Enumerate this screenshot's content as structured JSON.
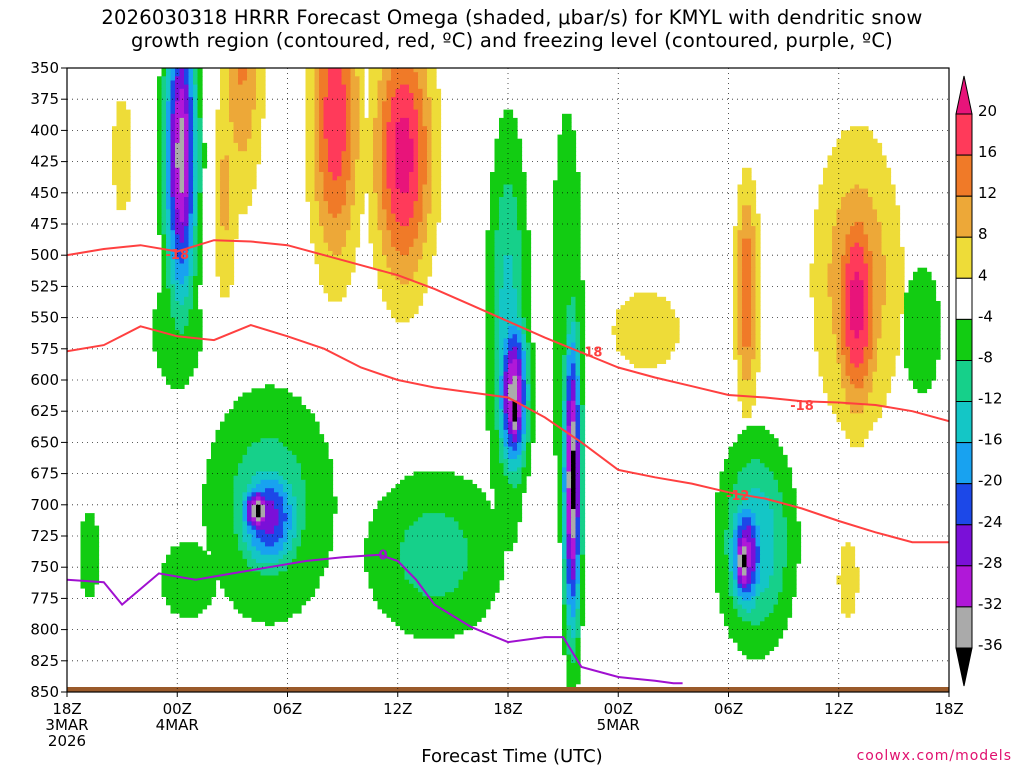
{
  "header": {
    "title_line1": "2026030318 HRRR Forecast Omega (shaded, μbar/s) for KMYL with dendritic snow",
    "title_line2": "growth region (contoured, red, ºC) and freezing level (contoured, purple, ºC)"
  },
  "footer": {
    "credit": "coolwx.com/models"
  },
  "chart_data": {
    "type": "heatmap",
    "xlabel": "Forecast Time (UTC)",
    "ylabel": "",
    "y_ticks": [
      350,
      375,
      400,
      425,
      450,
      475,
      500,
      525,
      550,
      575,
      600,
      625,
      650,
      675,
      700,
      725,
      750,
      775,
      800,
      825,
      850
    ],
    "ylim": [
      350,
      850
    ],
    "y_inverted": true,
    "xlim": [
      0,
      48
    ],
    "x_ticks": [
      {
        "hour": 0,
        "lines": [
          "18Z",
          "3MAR",
          "2026"
        ]
      },
      {
        "hour": 6,
        "lines": [
          "00Z",
          "4MAR"
        ]
      },
      {
        "hour": 12,
        "lines": [
          "06Z"
        ]
      },
      {
        "hour": 18,
        "lines": [
          "12Z"
        ]
      },
      {
        "hour": 24,
        "lines": [
          "18Z"
        ]
      },
      {
        "hour": 30,
        "lines": [
          "00Z",
          "5MAR"
        ]
      },
      {
        "hour": 36,
        "lines": [
          "06Z"
        ]
      },
      {
        "hour": 42,
        "lines": [
          "12Z"
        ]
      },
      {
        "hour": 48,
        "lines": [
          "18Z"
        ]
      }
    ],
    "grid": true,
    "colorbar": {
      "labels": [
        20,
        16,
        12,
        8,
        4,
        -4,
        -8,
        -12,
        -16,
        -20,
        -24,
        -28,
        -32,
        -36
      ],
      "bins": [
        {
          "min": 20,
          "max": 24,
          "color": "#e8147a"
        },
        {
          "min": 16,
          "max": 20,
          "color": "#ff3a5a"
        },
        {
          "min": 12,
          "max": 16,
          "color": "#f07a28"
        },
        {
          "min": 8,
          "max": 12,
          "color": "#eda838"
        },
        {
          "min": 4,
          "max": 8,
          "color": "#eedc38"
        },
        {
          "min": -4,
          "max": 4,
          "color": "#ffffff"
        },
        {
          "min": -8,
          "max": -4,
          "color": "#12cc12"
        },
        {
          "min": -12,
          "max": -8,
          "color": "#16d08a"
        },
        {
          "min": -16,
          "max": -12,
          "color": "#14c6c6"
        },
        {
          "min": -20,
          "max": -16,
          "color": "#18a2f0"
        },
        {
          "min": -24,
          "max": -20,
          "color": "#1c48e8"
        },
        {
          "min": -28,
          "max": -24,
          "color": "#7a10d8"
        },
        {
          "min": -32,
          "max": -28,
          "color": "#b018d8"
        },
        {
          "min": -36,
          "max": -32,
          "color": "#aaaaaa"
        },
        {
          "min": -40,
          "max": -36,
          "color": "#000000"
        }
      ]
    },
    "omega_field": {
      "units": "μbar/s",
      "features": [
        {
          "t_center": 6.2,
          "p_center": 420,
          "t_halfwidth": 1.1,
          "p_halfwidth": 150,
          "value": -34
        },
        {
          "t_center": 6.0,
          "p_center": 560,
          "t_halfwidth": 2.0,
          "p_halfwidth": 70,
          "value": -8
        },
        {
          "t_center": 9.5,
          "p_center": 330,
          "t_halfwidth": 1.5,
          "p_halfwidth": 160,
          "value": 13
        },
        {
          "t_center": 8.6,
          "p_center": 450,
          "t_halfwidth": 0.9,
          "p_halfwidth": 120,
          "value": 9
        },
        {
          "t_center": 14.6,
          "p_center": 390,
          "t_halfwidth": 1.7,
          "p_halfwidth": 150,
          "value": 19
        },
        {
          "t_center": 18.3,
          "p_center": 420,
          "t_halfwidth": 2.0,
          "p_halfwidth": 130,
          "value": 22
        },
        {
          "t_center": 3.0,
          "p_center": 420,
          "t_halfwidth": 1.0,
          "p_halfwidth": 90,
          "value": 6
        },
        {
          "t_center": 11.0,
          "p_center": 700,
          "t_halfwidth": 4.5,
          "p_halfwidth": 120,
          "value": -11
        },
        {
          "t_center": 11.0,
          "p_center": 710,
          "t_halfwidth": 2.2,
          "p_halfwidth": 55,
          "value": -26
        },
        {
          "t_center": 10.4,
          "p_center": 705,
          "t_halfwidth": 1.1,
          "p_halfwidth": 25,
          "value": -38
        },
        {
          "t_center": 6.6,
          "p_center": 760,
          "t_halfwidth": 3.0,
          "p_halfwidth": 60,
          "value": -6
        },
        {
          "t_center": 20.0,
          "p_center": 740,
          "t_halfwidth": 5.0,
          "p_halfwidth": 90,
          "value": -10
        },
        {
          "t_center": 24.0,
          "p_center": 560,
          "t_halfwidth": 1.4,
          "p_halfwidth": 200,
          "value": -14
        },
        {
          "t_center": 24.3,
          "p_center": 610,
          "t_halfwidth": 1.0,
          "p_halfwidth": 80,
          "value": -34
        },
        {
          "t_center": 24.4,
          "p_center": 625,
          "t_halfwidth": 0.5,
          "p_halfwidth": 45,
          "value": -38
        },
        {
          "t_center": 27.5,
          "p_center": 680,
          "t_halfwidth": 0.6,
          "p_halfwidth": 150,
          "value": -38
        },
        {
          "t_center": 27.2,
          "p_center": 550,
          "t_halfwidth": 1.3,
          "p_halfwidth": 250,
          "value": -8
        },
        {
          "t_center": 31.5,
          "p_center": 560,
          "t_halfwidth": 3.5,
          "p_halfwidth": 60,
          "value": 6
        },
        {
          "t_center": 37.0,
          "p_center": 530,
          "t_halfwidth": 0.8,
          "p_halfwidth": 110,
          "value": 16
        },
        {
          "t_center": 43.0,
          "p_center": 520,
          "t_halfwidth": 3.0,
          "p_halfwidth": 150,
          "value": 12
        },
        {
          "t_center": 43.0,
          "p_center": 540,
          "t_halfwidth": 1.5,
          "p_halfwidth": 110,
          "value": 22
        },
        {
          "t_center": 37.5,
          "p_center": 730,
          "t_halfwidth": 2.5,
          "p_halfwidth": 100,
          "value": -16
        },
        {
          "t_center": 37.0,
          "p_center": 740,
          "t_halfwidth": 1.2,
          "p_halfwidth": 60,
          "value": -30
        },
        {
          "t_center": 36.8,
          "p_center": 745,
          "t_halfwidth": 0.6,
          "p_halfwidth": 40,
          "value": -38
        },
        {
          "t_center": 46.5,
          "p_center": 560,
          "t_halfwidth": 2.0,
          "p_halfwidth": 100,
          "value": -6
        },
        {
          "t_center": 41.0,
          "p_center": 410,
          "t_halfwidth": 3.0,
          "p_halfwidth": 70,
          "value": 3
        },
        {
          "t_center": 42.5,
          "p_center": 760,
          "t_halfwidth": 1.0,
          "p_halfwidth": 60,
          "value": 6
        },
        {
          "t_center": 1.2,
          "p_center": 740,
          "t_halfwidth": 1.0,
          "p_halfwidth": 70,
          "value": -6
        }
      ]
    },
    "contours": [
      {
        "label": "-18",
        "color": "#ff4040",
        "label_at": {
          "hour": 6.0,
          "pressure": 499
        },
        "points": [
          [
            0,
            500
          ],
          [
            2,
            495
          ],
          [
            4,
            492
          ],
          [
            6,
            497
          ],
          [
            8,
            488
          ],
          [
            10,
            489
          ],
          [
            12,
            492
          ],
          [
            14,
            500
          ],
          [
            16,
            508
          ],
          [
            18,
            516
          ],
          [
            20,
            527
          ],
          [
            22,
            540
          ],
          [
            24,
            553
          ],
          [
            26,
            566
          ],
          [
            28,
            578
          ],
          [
            30,
            590
          ],
          [
            32,
            598
          ],
          [
            34,
            605
          ],
          [
            36,
            612
          ],
          [
            38,
            614
          ],
          [
            40,
            617
          ],
          [
            42,
            618
          ],
          [
            44,
            620
          ],
          [
            46,
            625
          ],
          [
            48,
            633
          ]
        ]
      },
      {
        "label": "-12",
        "color": "#ff4040",
        "label_at": {
          "hour": 36.5,
          "pressure": 692
        },
        "points": [
          [
            0,
            577
          ],
          [
            2,
            572
          ],
          [
            4,
            557
          ],
          [
            6,
            565
          ],
          [
            8,
            568
          ],
          [
            10,
            556
          ],
          [
            12,
            565
          ],
          [
            14,
            575
          ],
          [
            16,
            590
          ],
          [
            18,
            600
          ],
          [
            20,
            606
          ],
          [
            22,
            610
          ],
          [
            24,
            614
          ],
          [
            26,
            630
          ],
          [
            28,
            650
          ],
          [
            30,
            672
          ],
          [
            32,
            678
          ],
          [
            34,
            683
          ],
          [
            36,
            690
          ],
          [
            38,
            695
          ],
          [
            40,
            703
          ],
          [
            42,
            713
          ],
          [
            44,
            722
          ],
          [
            46,
            730
          ],
          [
            48,
            730
          ]
        ]
      },
      {
        "label": "-18",
        "color": "#ff4040",
        "label_at": {
          "hour": 28.5,
          "pressure": 577
        },
        "points": []
      },
      {
        "label": "-18",
        "color": "#ff4040",
        "label_at": {
          "hour": 40.0,
          "pressure": 620
        },
        "points": []
      },
      {
        "label": "0",
        "color": "#a010d0",
        "label_at": {
          "hour": 17.2,
          "pressure": 740
        },
        "points": [
          [
            0,
            760
          ],
          [
            2,
            762
          ],
          [
            3,
            780
          ],
          [
            5,
            755
          ],
          [
            7,
            760
          ],
          [
            9,
            755
          ],
          [
            11,
            750
          ],
          [
            13,
            745
          ],
          [
            15,
            742
          ],
          [
            17,
            740
          ],
          [
            18,
            745
          ],
          [
            19,
            760
          ],
          [
            20,
            780
          ],
          [
            22,
            798
          ],
          [
            24,
            810
          ],
          [
            26,
            806
          ],
          [
            27,
            806
          ],
          [
            28,
            830
          ],
          [
            30,
            838
          ],
          [
            32,
            841
          ],
          [
            33,
            843
          ],
          [
            33.5,
            843
          ]
        ]
      }
    ],
    "terrain": {
      "color": "#9a5a2a",
      "top_pressure": 846
    }
  }
}
